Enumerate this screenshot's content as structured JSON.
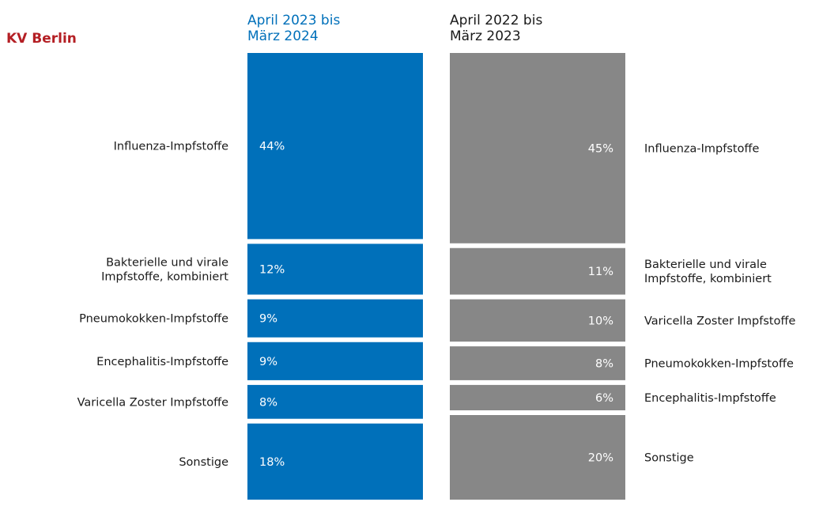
{
  "region_label": "KV Berlin",
  "colors": {
    "region": "#b41f24",
    "current": "#0070ba",
    "previous": "#878787",
    "text": "#1a1a1a",
    "bar_label": "#ffffff"
  },
  "chart_data": [
    {
      "type": "bar",
      "stacked": true,
      "orientation": "vertical",
      "title": "",
      "period_label": [
        "April 2023 bis",
        "März 2024"
      ],
      "color": "#0070ba",
      "value_unit": "%",
      "label_position": "left",
      "segments": [
        {
          "category": "Influenza-Impfstoffe",
          "label": [
            "Influenza-Impfstoffe"
          ],
          "value": 44,
          "display": "44%"
        },
        {
          "category": "Bakterielle und virale Impfstoffe, kombiniert",
          "label": [
            "Bakterielle und virale",
            "Impfstoffe, kombiniert"
          ],
          "value": 12,
          "display": "12%"
        },
        {
          "category": "Pneumokokken-Impfstoffe",
          "label": [
            "Pneumokokken-Impfstoffe"
          ],
          "value": 9,
          "display": "9%"
        },
        {
          "category": "Encephalitis-Impfstoffe",
          "label": [
            "Encephalitis-Impfstoffe"
          ],
          "value": 9,
          "display": "9%"
        },
        {
          "category": "Varicella Zoster Impfstoffe",
          "label": [
            "Varicella Zoster Impfstoffe"
          ],
          "value": 8,
          "display": "8%"
        },
        {
          "category": "Sonstige",
          "label": [
            "Sonstige"
          ],
          "value": 18,
          "display": "18%"
        }
      ]
    },
    {
      "type": "bar",
      "stacked": true,
      "orientation": "vertical",
      "title": "",
      "period_label": [
        "April 2022 bis",
        "März 2023"
      ],
      "color": "#878787",
      "value_unit": "%",
      "label_position": "right",
      "segments": [
        {
          "category": "Influenza-Impfstoffe",
          "label": [
            "Influenza-Impfstoffe"
          ],
          "value": 45,
          "display": "45%"
        },
        {
          "category": "Bakterielle und virale Impfstoffe, kombiniert",
          "label": [
            "Bakterielle und virale",
            "Impfstoffe, kombiniert"
          ],
          "value": 11,
          "display": "11%"
        },
        {
          "category": "Varicella Zoster Impfstoffe",
          "label": [
            "Varicella Zoster Impfstoffe"
          ],
          "value": 10,
          "display": "10%"
        },
        {
          "category": "Pneumokokken-Impfstoffe",
          "label": [
            "Pneumokokken-Impfstoffe"
          ],
          "value": 8,
          "display": "8%"
        },
        {
          "category": "Encephalitis-Impfstoffe",
          "label": [
            "Encephalitis-Impfstoffe"
          ],
          "value": 6,
          "display": "6%"
        },
        {
          "category": "Sonstige",
          "label": [
            "Sonstige"
          ],
          "value": 20,
          "display": "20%"
        }
      ]
    }
  ]
}
